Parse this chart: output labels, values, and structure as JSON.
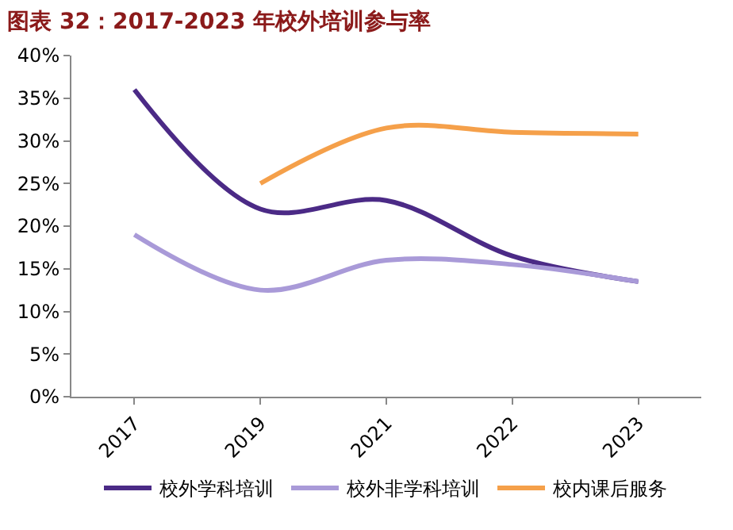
{
  "chart_data": {
    "type": "line",
    "title": "图表 32：2017-2023 年校外培训参与率",
    "categories": [
      "2017",
      "2019",
      "2021",
      "2022",
      "2023"
    ],
    "series": [
      {
        "name": "校外学科培训",
        "color": "#4b2a86",
        "values": [
          36,
          22,
          23,
          16.5,
          13.5
        ]
      },
      {
        "name": "校外非学科培训",
        "color": "#a99ad8",
        "values": [
          19,
          12.5,
          16,
          15.5,
          13.5
        ]
      },
      {
        "name": "校内课后服务",
        "color": "#f5a04a",
        "values": [
          null,
          25,
          31.5,
          31,
          30.8
        ]
      }
    ],
    "ylim": [
      0,
      40
    ],
    "yticks": [
      {
        "value": 0,
        "label": "0%"
      },
      {
        "value": 5,
        "label": "5%"
      },
      {
        "value": 10,
        "label": "10%"
      },
      {
        "value": 15,
        "label": "15%"
      },
      {
        "value": 20,
        "label": "20%"
      },
      {
        "value": 25,
        "label": "25%"
      },
      {
        "value": 30,
        "label": "30%"
      },
      {
        "value": 35,
        "label": "35%"
      },
      {
        "value": 40,
        "label": "40%"
      }
    ],
    "legend": "bottom",
    "marker": "none",
    "line_style": "solid"
  }
}
